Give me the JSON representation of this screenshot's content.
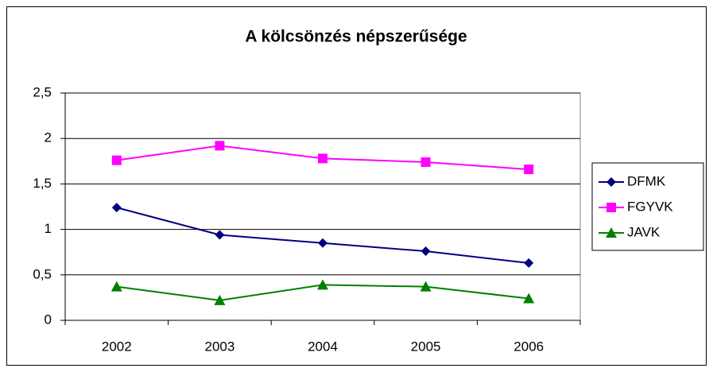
{
  "chart_data": {
    "type": "line",
    "title": "A kölcsönzés népszerűsége",
    "categories": [
      "2002",
      "2003",
      "2004",
      "2005",
      "2006"
    ],
    "series": [
      {
        "name": "DFMK",
        "color": "#000080",
        "marker": "diamond",
        "values": [
          1.24,
          0.94,
          0.85,
          0.76,
          0.63
        ]
      },
      {
        "name": "FGYVK",
        "color": "#ff00ff",
        "marker": "square",
        "values": [
          1.76,
          1.92,
          1.78,
          1.74,
          1.66
        ]
      },
      {
        "name": "JAVK",
        "color": "#008000",
        "marker": "triangle",
        "values": [
          0.37,
          0.22,
          0.39,
          0.37,
          0.24
        ]
      }
    ],
    "ylim": [
      0,
      2.5
    ],
    "yticks": [
      0,
      {
        "value": 0.5,
        "label": "0,5"
      },
      1,
      {
        "value": 1.5,
        "label": "1,5"
      },
      2,
      {
        "value": 2.5,
        "label": "2,5"
      }
    ],
    "grid": true,
    "legend": "right"
  }
}
